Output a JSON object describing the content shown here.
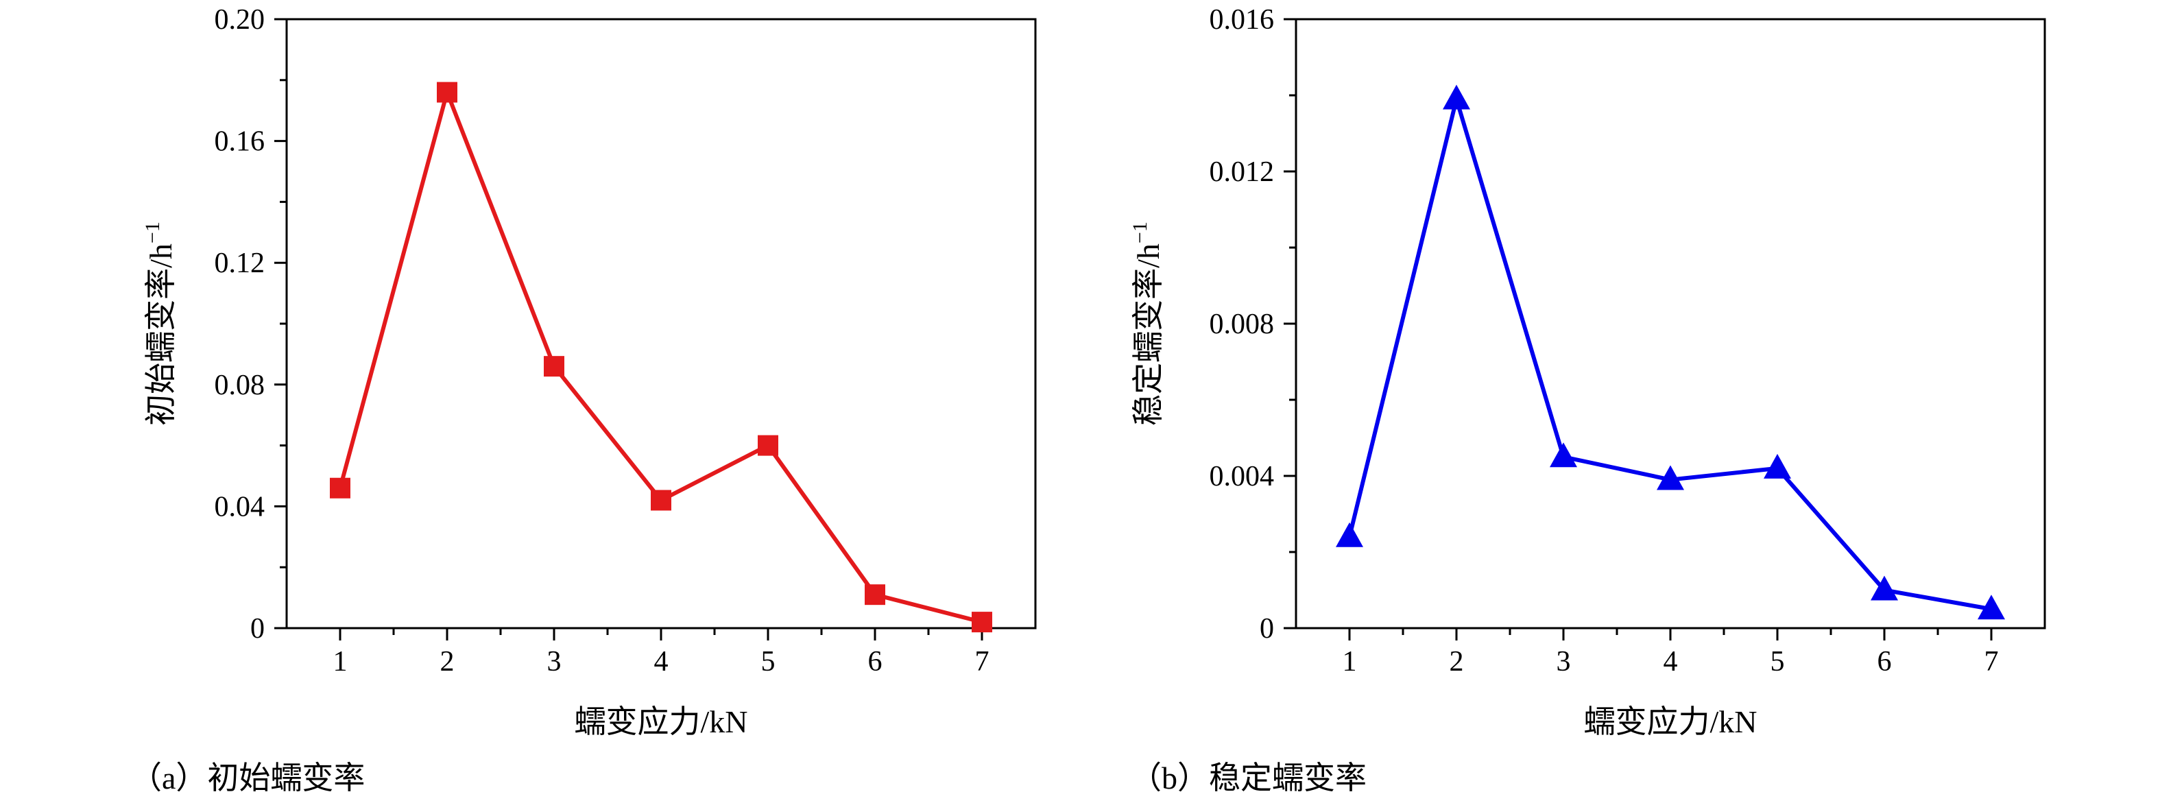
{
  "chart_data": [
    {
      "type": "line",
      "caption": "（a）初始蠕变率",
      "xlabel": "蠕变应力/kN",
      "ylabel": "初始蠕变率/h",
      "ylabel_sup": "−1",
      "x": [
        1,
        2,
        3,
        4,
        5,
        6,
        7
      ],
      "x_ticks": [
        "1",
        "2",
        "3",
        "4",
        "5",
        "6",
        "7"
      ],
      "xlim": [
        0.5,
        7.5
      ],
      "ylim": [
        0,
        0.2
      ],
      "y_ticks": [
        0,
        0.04,
        0.08,
        0.12,
        0.16,
        0.2
      ],
      "y_tick_labels": [
        "0",
        "0.04",
        "0.08",
        "0.12",
        "0.16",
        "0.20"
      ],
      "series": [
        {
          "values": [
            0.046,
            0.176,
            0.086,
            0.042,
            0.06,
            0.011,
            0.002
          ],
          "color": "#e31a1c",
          "marker": "square"
        }
      ]
    },
    {
      "type": "line",
      "caption": "（b）稳定蠕变率",
      "xlabel": "蠕变应力/kN",
      "ylabel": "稳定蠕变率/h",
      "ylabel_sup": "−1",
      "x": [
        1,
        2,
        3,
        4,
        5,
        6,
        7
      ],
      "x_ticks": [
        "1",
        "2",
        "3",
        "4",
        "5",
        "6",
        "7"
      ],
      "xlim": [
        0.5,
        7.5
      ],
      "ylim": [
        0,
        0.016
      ],
      "y_ticks": [
        0,
        0.004,
        0.008,
        0.012,
        0.016
      ],
      "y_tick_labels": [
        "0",
        "0.004",
        "0.008",
        "0.012",
        "0.016"
      ],
      "series": [
        {
          "values": [
            0.0024,
            0.0139,
            0.0045,
            0.0039,
            0.0042,
            0.001,
            0.0005
          ],
          "color": "#0000ee",
          "marker": "triangle"
        }
      ]
    }
  ]
}
